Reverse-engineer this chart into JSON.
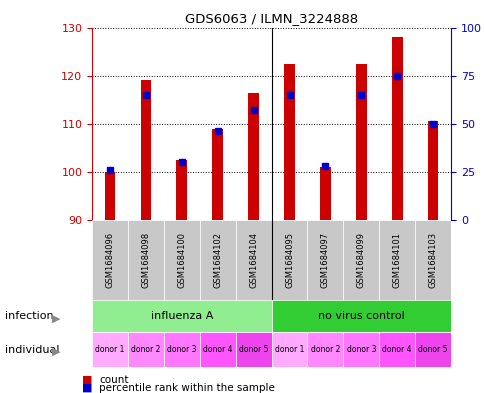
{
  "title": "GDS6063 / ILMN_3224888",
  "samples": [
    "GSM1684096",
    "GSM1684098",
    "GSM1684100",
    "GSM1684102",
    "GSM1684104",
    "GSM1684095",
    "GSM1684097",
    "GSM1684099",
    "GSM1684101",
    "GSM1684103"
  ],
  "count_values": [
    100.0,
    119.0,
    102.5,
    109.0,
    116.5,
    122.5,
    101.0,
    122.5,
    128.0,
    110.5
  ],
  "percentile_values": [
    26,
    65,
    30,
    46,
    57,
    65,
    28,
    65,
    75,
    50
  ],
  "ylim_left": [
    90,
    130
  ],
  "ylim_right": [
    0,
    100
  ],
  "yticks_left": [
    90,
    100,
    110,
    120,
    130
  ],
  "yticks_right": [
    0,
    25,
    50,
    75,
    100
  ],
  "infection_groups": [
    {
      "label": "influenza A",
      "start": 0,
      "end": 5,
      "color": "#90EE90"
    },
    {
      "label": "no virus control",
      "start": 5,
      "end": 10,
      "color": "#32CD32"
    }
  ],
  "individual_labels": [
    "donor 1",
    "donor 2",
    "donor 3",
    "donor 4",
    "donor 5",
    "donor 1",
    "donor 2",
    "donor 3",
    "donor 4",
    "donor 5"
  ],
  "individual_colors": [
    "#FFAAFF",
    "#FF88FF",
    "#FF77FF",
    "#FF55FF",
    "#EE44EE",
    "#FFAAFF",
    "#FF88FF",
    "#FF77FF",
    "#FF55FF",
    "#EE44EE"
  ],
  "bar_color": "#CC0000",
  "dot_color": "#0000CC",
  "tick_label_color_left": "#CC0000",
  "tick_label_color_right": "#0000CC",
  "bar_bottom": 90,
  "legend_count_label": "count",
  "legend_percentile_label": "percentile rank within the sample",
  "infection_row_label": "infection",
  "individual_row_label": "individual",
  "gray_box_color": "#C8C8C8"
}
